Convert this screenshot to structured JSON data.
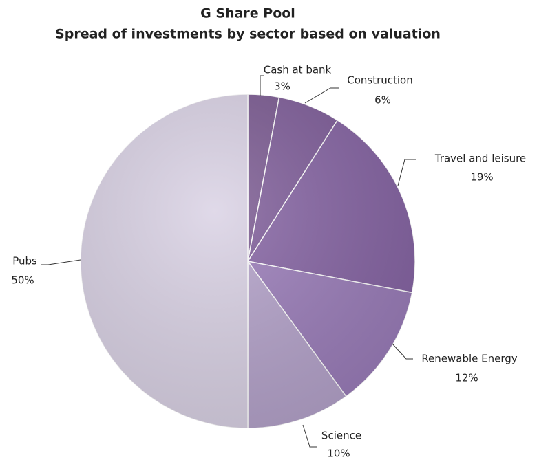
{
  "chart_data": {
    "type": "pie",
    "title": "G Share Pool",
    "subtitle": "Spread of investments by sector based on valuation",
    "categories": [
      "Cash at bank",
      "Construction",
      "Travel and leisure",
      "Renewable Energy",
      "Science",
      "Pubs"
    ],
    "values": [
      3,
      6,
      19,
      12,
      10,
      50
    ],
    "value_labels": [
      "3%",
      "6%",
      "19%",
      "12%",
      "10%",
      "50%"
    ],
    "colors": [
      "#7a5991",
      "#7e5c99",
      "#8563a3",
      "#9a7cb9",
      "#b4a2ca",
      "#d9d1e4"
    ]
  }
}
